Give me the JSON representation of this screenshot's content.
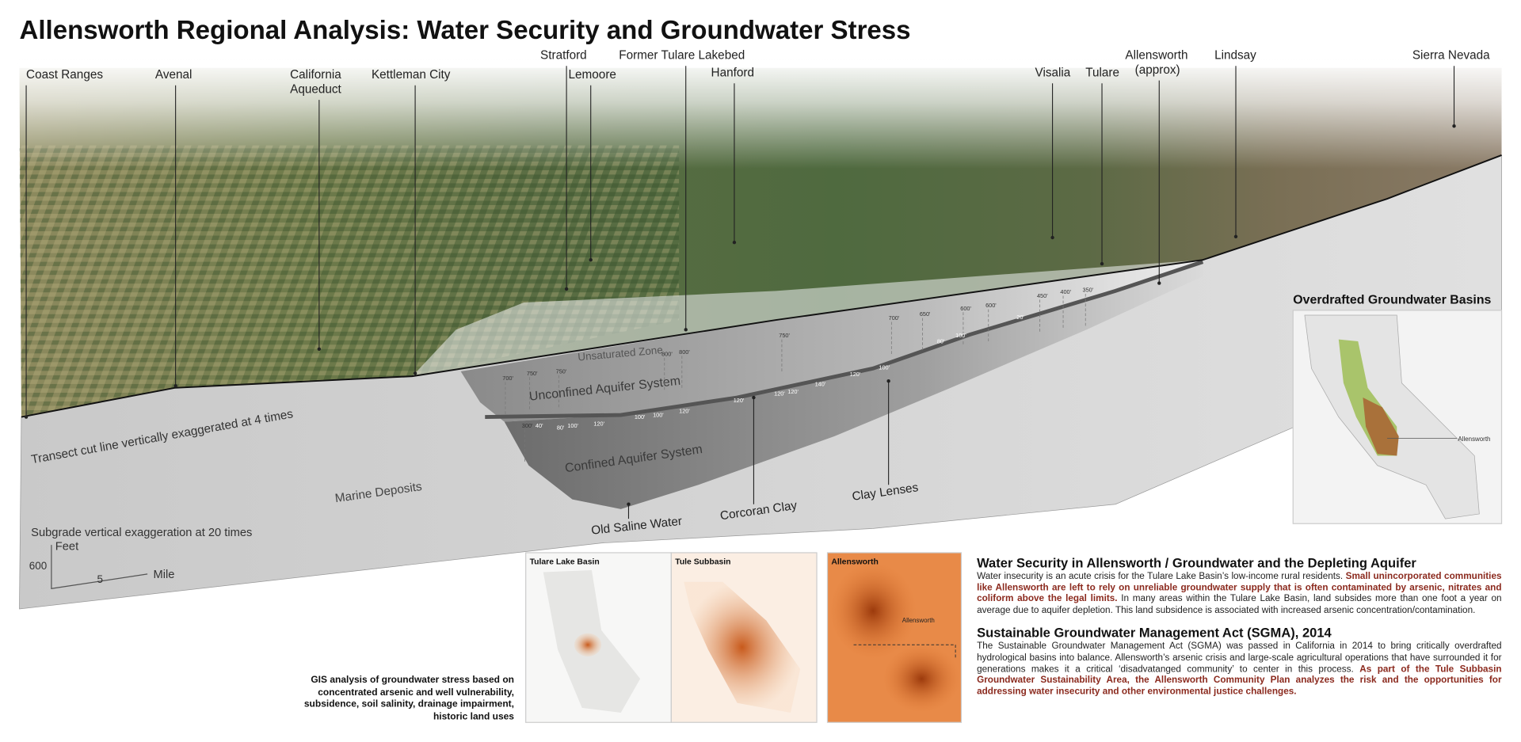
{
  "title": "Allensworth Regional Analysis: Water Security and Groundwater Stress",
  "place_labels": [
    [
      "Coast Ranges"
    ],
    [
      "Avenal"
    ],
    [
      "California",
      "Aqueduct"
    ],
    [
      "Kettleman City"
    ],
    [
      "Stratford"
    ],
    [
      "Lemoore"
    ],
    [
      "Former Tulare Lakebed"
    ],
    [
      "Hanford"
    ],
    [
      "Visalia"
    ],
    [
      "Tulare"
    ],
    [
      "Allensworth",
      "(approx)"
    ],
    [
      "Lindsay"
    ],
    [
      "Sierra Nevada"
    ]
  ],
  "section_labels": [
    "Unsaturated Zone",
    "Unconfined Aquifer System",
    "Confined Aquifer System",
    "Marine Deposits",
    "Transect cut line vertically exaggerated at 4 times",
    "Old Saline Water",
    "Corcoran Clay",
    "Clay Lenses"
  ],
  "depth_labels": [
    "700'",
    "750'",
    "750'",
    "800'",
    "800'",
    "750'",
    "700'",
    "650'",
    "600'",
    "600'",
    "450'",
    "400'",
    "350'",
    "300'",
    "40'",
    "80'",
    "100'",
    "120'",
    "120'",
    "100'",
    "100'",
    "120'",
    "120'",
    "120'",
    "140'",
    "120'",
    "100'",
    "80'",
    "100'",
    "20'"
  ],
  "scale": {
    "note": "Subgrade vertical exaggeration at 20 times",
    "y_unit": "Feet",
    "y_value": 600,
    "x_value": 5,
    "x_unit": "Mile"
  },
  "inset": {
    "title": "Overdrafted Groundwater Basins",
    "marker": "Allensworth"
  },
  "maps": [
    {
      "title": "Tulare Lake Basin"
    },
    {
      "title": "Tule Subbasin"
    },
    {
      "title": "Allensworth",
      "marker": "Allensworth"
    }
  ],
  "caption": "GIS analysis of groundwater stress based on concentrated arsenic and well vulnerability, subsidence, soil salinity, drainage impairment, historic land uses",
  "sections": [
    {
      "heading": "Water Security in Allensworth / Groundwater and the Depleting Aquifer",
      "body": [
        {
          "text": "Water insecurity is an acute crisis for the Tulare Lake Basin’s low-income rural residents. ",
          "emphasis": false
        },
        {
          "text": "Small unincorporated communities like Allensworth are left to rely on unreliable groundwater supply that is often contaminated by arsenic, nitrates and coliform above the legal limits.",
          "emphasis": true
        },
        {
          "text": " In many areas within the Tulare Lake Basin, land subsides more than one foot a year on average due to aquifer depletion. This land subsidence is associated with increased arsenic concentration/contamination.",
          "emphasis": false
        }
      ]
    },
    {
      "heading": "Sustainable Groundwater Management Act (SGMA), 2014",
      "body": [
        {
          "text": "The Sustainable Groundwater Management Act (SGMA) was passed in California in 2014 to bring critically overdrafted hydrological basins into balance. Allensworth’s arsenic crisis and large-scale agricultural operations that have surrounded it for generations makes it a critical ‘disadvatanged community’ to center in this process. ",
          "emphasis": false
        },
        {
          "text": "As part of the Tule Subbasin Groundwater Sustainability Area, the Allensworth Community Plan analyzes the risk and the opportunities for addressing water insecurity and other environmental justice challenges.",
          "emphasis": true
        }
      ]
    }
  ]
}
